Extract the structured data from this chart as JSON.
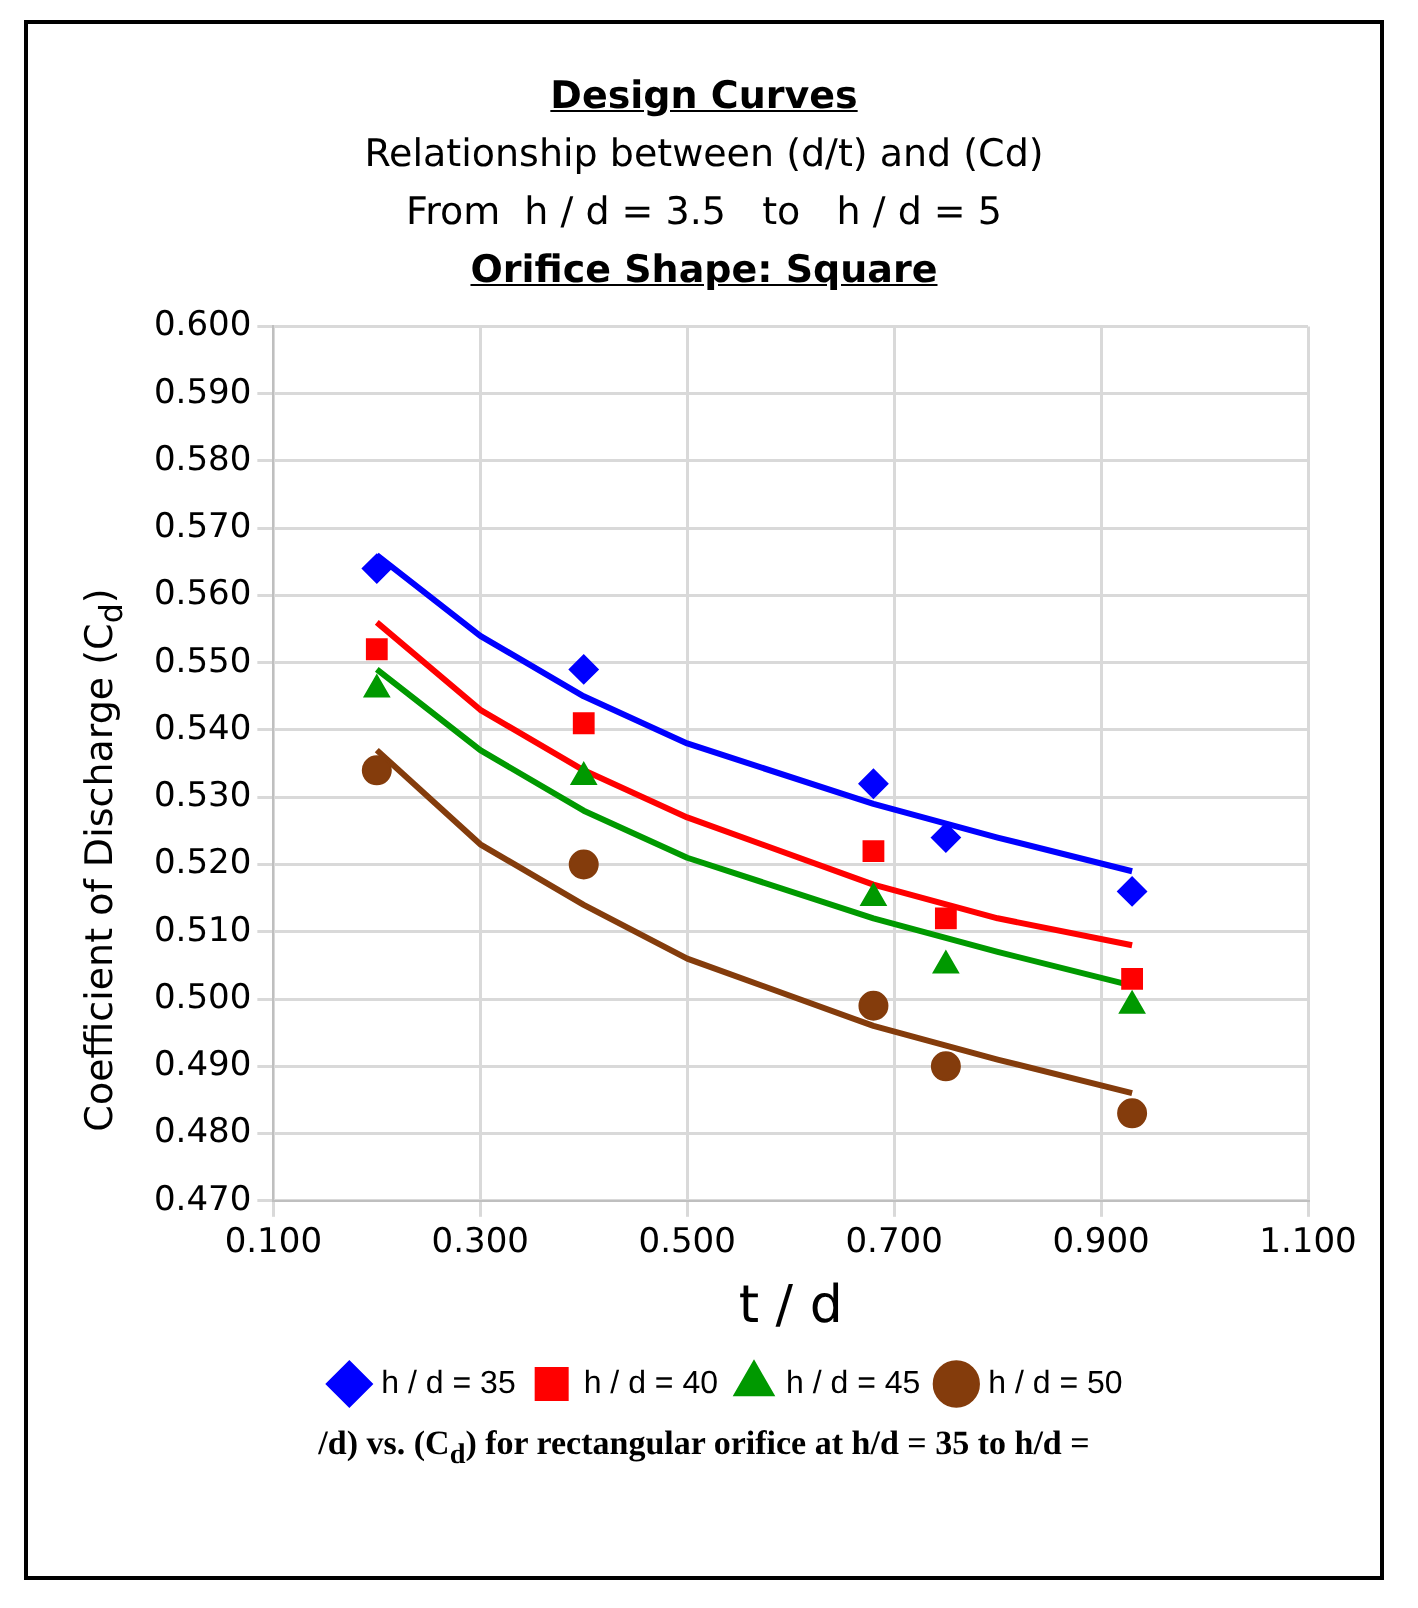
{
  "chart_data": {
    "type": "scatter",
    "title": "Design Curves",
    "subtitle": "Relationship between (d/t) and (Cd)\nFrom  h / d = 3.5   to   h / d = 5",
    "annotations": [
      "Orifice Shape: Square",
      "/d) vs. (C$_{d}$) for rectangular orifice at h/d = 35 to h/d ="
    ],
    "xlabel": "t / d",
    "ylabel": "Coefficient of Discharge (C$_{d}$)",
    "x": [
      0.2,
      0.4,
      0.68,
      0.75,
      0.93
    ],
    "series": [
      {
        "name": "h / d = 35",
        "color": "#0000ff",
        "marker": "diamond",
        "values": [
          0.564,
          0.549,
          0.532,
          0.524,
          0.516
        ]
      },
      {
        "name": "h / d = 40",
        "color": "#ff0000",
        "marker": "square",
        "values": [
          0.552,
          0.541,
          0.522,
          0.512,
          0.503
        ]
      },
      {
        "name": "h / d = 45",
        "color": "#009900",
        "marker": "triangle",
        "values": [
          0.546,
          0.533,
          0.515,
          0.505,
          0.499
        ]
      },
      {
        "name": "h / d = 50",
        "color": "#843c0c",
        "marker": "circle",
        "values": [
          0.534,
          0.52,
          0.499,
          0.49,
          0.483
        ]
      },
      {
        "type": "line",
        "color": "#0000ff",
        "marker": "none",
        "x": [
          0.2,
          0.3,
          0.4,
          0.5,
          0.68,
          0.8,
          0.93
        ],
        "values": [
          0.566,
          0.554,
          0.545,
          0.538,
          0.529,
          0.524,
          0.519
        ]
      },
      {
        "type": "line",
        "color": "#ff0000",
        "marker": "none",
        "x": [
          0.2,
          0.3,
          0.4,
          0.5,
          0.68,
          0.8,
          0.93
        ],
        "values": [
          0.556,
          0.543,
          0.534,
          0.527,
          0.517,
          0.512,
          0.508
        ]
      },
      {
        "type": "line",
        "color": "#009900",
        "marker": "none",
        "x": [
          0.2,
          0.3,
          0.4,
          0.5,
          0.68,
          0.8,
          0.93
        ],
        "values": [
          0.549,
          0.537,
          0.528,
          0.521,
          0.512,
          0.507,
          0.502
        ]
      },
      {
        "type": "line",
        "color": "#843c0c",
        "marker": "none",
        "x": [
          0.2,
          0.3,
          0.4,
          0.5,
          0.68,
          0.8,
          0.93
        ],
        "values": [
          0.537,
          0.523,
          0.514,
          0.506,
          0.496,
          0.491,
          0.486
        ]
      }
    ],
    "xlim": [
      0.1,
      1.1
    ],
    "xticks": [
      {
        "value": 0.1,
        "label": "0.100"
      },
      {
        "value": 0.3,
        "label": "0.300"
      },
      {
        "value": 0.5,
        "label": "0.500"
      },
      {
        "value": 0.7,
        "label": "0.700"
      },
      {
        "value": 0.9,
        "label": "0.900"
      },
      {
        "value": 1.1,
        "label": "1.100"
      }
    ],
    "ylim": [
      0.47,
      0.6
    ],
    "yticks": [
      {
        "value": 0.47,
        "label": "0.470"
      },
      {
        "value": 0.48,
        "label": "0.480"
      },
      {
        "value": 0.49,
        "label": "0.490"
      },
      {
        "value": 0.5,
        "label": "0.500"
      },
      {
        "value": 0.51,
        "label": "0.510"
      },
      {
        "value": 0.52,
        "label": "0.520"
      },
      {
        "value": 0.53,
        "label": "0.530"
      },
      {
        "value": 0.54,
        "label": "0.540"
      },
      {
        "value": 0.55,
        "label": "0.550"
      },
      {
        "value": 0.56,
        "label": "0.560"
      },
      {
        "value": 0.57,
        "label": "0.570"
      },
      {
        "value": 0.58,
        "label": "0.580"
      },
      {
        "value": 0.59,
        "label": "0.590"
      },
      {
        "value": 0.6,
        "label": "0.600"
      }
    ],
    "grid": true,
    "legend": "bottom"
  }
}
